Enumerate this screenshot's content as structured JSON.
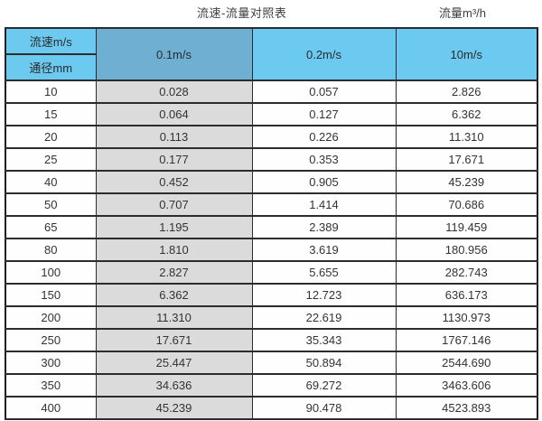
{
  "titles": {
    "left": "流速-流量对照表",
    "right": "流量m³/h"
  },
  "table": {
    "corner": {
      "top": "流速m/s",
      "bottom": "通径mm"
    },
    "velocity_columns": [
      "0.1m/s",
      "0.2m/s",
      "10m/s"
    ],
    "rows": [
      {
        "dn": "10",
        "v01": "0.028",
        "v02": "0.057",
        "v10": "2.826"
      },
      {
        "dn": "15",
        "v01": "0.064",
        "v02": "0.127",
        "v10": "6.362"
      },
      {
        "dn": "20",
        "v01": "0.113",
        "v02": "0.226",
        "v10": "11.310"
      },
      {
        "dn": "25",
        "v01": "0.177",
        "v02": "0.353",
        "v10": "17.671"
      },
      {
        "dn": "40",
        "v01": "0.452",
        "v02": "0.905",
        "v10": "45.239"
      },
      {
        "dn": "50",
        "v01": "0.707",
        "v02": "1.414",
        "v10": "70.686"
      },
      {
        "dn": "65",
        "v01": "1.195",
        "v02": "2.389",
        "v10": "119.459"
      },
      {
        "dn": "80",
        "v01": "1.810",
        "v02": "3.619",
        "v10": "180.956"
      },
      {
        "dn": "100",
        "v01": "2.827",
        "v02": "5.655",
        "v10": "282.743"
      },
      {
        "dn": "150",
        "v01": "6.362",
        "v02": "12.723",
        "v10": "636.173"
      },
      {
        "dn": "200",
        "v01": "11.310",
        "v02": "22.619",
        "v10": "1130.973"
      },
      {
        "dn": "250",
        "v01": "17.671",
        "v02": "35.343",
        "v10": "1767.146"
      },
      {
        "dn": "300",
        "v01": "25.447",
        "v02": "50.894",
        "v10": "2544.690"
      },
      {
        "dn": "350",
        "v01": "34.636",
        "v02": "69.272",
        "v10": "3463.606"
      },
      {
        "dn": "400",
        "v01": "45.239",
        "v02": "90.478",
        "v10": "4523.893"
      }
    ]
  },
  "colors": {
    "header_blue": "#6cc9ef",
    "header_blue_dark": "#6fafd2",
    "column_gray": "#dbdbdb",
    "border": "#2c2c2c",
    "text": "#333333"
  },
  "chart_data": {
    "type": "table",
    "title": "流速-流量对照表",
    "unit_label": "流量m³/h",
    "row_header_label": "通径mm",
    "column_header_label": "流速m/s",
    "columns": [
      "0.1m/s",
      "0.2m/s",
      "10m/s"
    ],
    "diameters_mm": [
      10,
      15,
      20,
      25,
      40,
      50,
      65,
      80,
      100,
      150,
      200,
      250,
      300,
      350,
      400
    ],
    "series": [
      {
        "name": "0.1m/s",
        "values": [
          0.028,
          0.064,
          0.113,
          0.177,
          0.452,
          0.707,
          1.195,
          1.81,
          2.827,
          6.362,
          11.31,
          17.671,
          25.447,
          34.636,
          45.239
        ]
      },
      {
        "name": "0.2m/s",
        "values": [
          0.057,
          0.127,
          0.226,
          0.353,
          0.905,
          1.414,
          2.389,
          3.619,
          5.655,
          12.723,
          22.619,
          35.343,
          50.894,
          69.272,
          90.478
        ]
      },
      {
        "name": "10m/s",
        "values": [
          2.826,
          6.362,
          11.31,
          17.671,
          45.239,
          70.686,
          119.459,
          180.956,
          282.743,
          636.173,
          1130.973,
          1767.146,
          2544.69,
          3463.606,
          4523.893
        ]
      }
    ]
  }
}
